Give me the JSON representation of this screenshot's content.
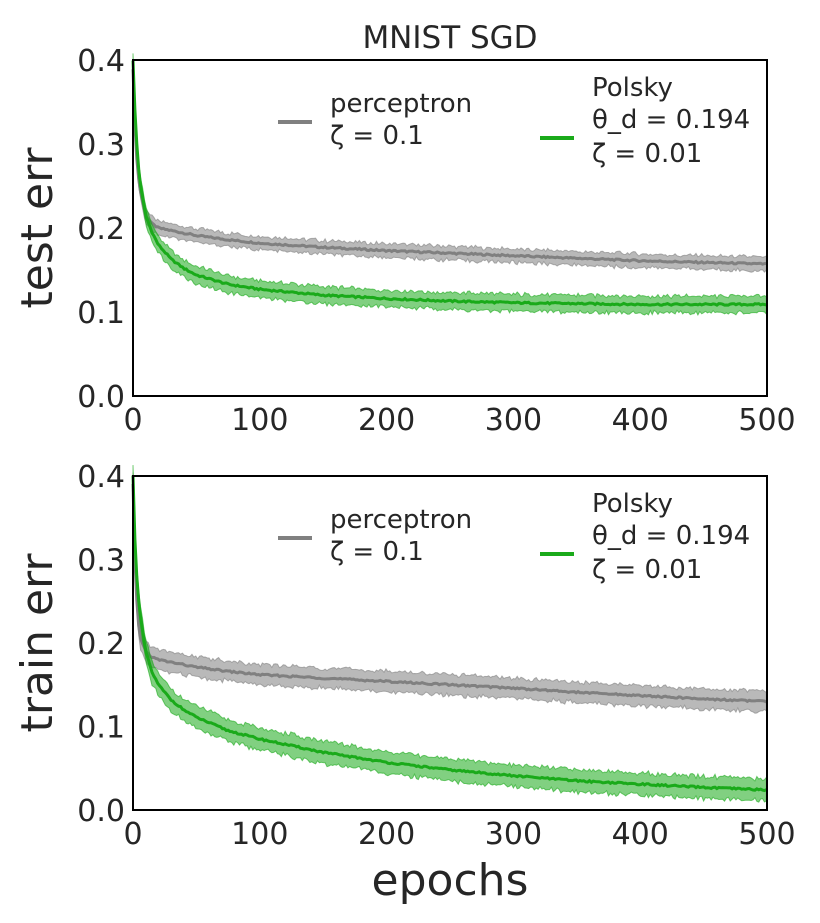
{
  "figure": {
    "title": "MNIST SGD",
    "xlabel": "epochs"
  },
  "chart_data": [
    {
      "type": "line",
      "panel": "top",
      "title": "MNIST SGD",
      "xlabel": "",
      "ylabel": "test err",
      "xlim": [
        0,
        500
      ],
      "ylim": [
        0.0,
        0.4
      ],
      "xticks": [
        "0",
        "100",
        "200",
        "300",
        "400",
        "500"
      ],
      "yticks": [
        "0.0",
        "0.1",
        "0.2",
        "0.3",
        "0.4"
      ],
      "legend": [
        {
          "lines": [
            "perceptron",
            "ζ = 0.1"
          ],
          "color": "#808080",
          "position": "top-center"
        },
        {
          "lines": [
            "Polsky",
            "θ_d = 0.194",
            "ζ = 0.01"
          ],
          "color": "#1aaa1a",
          "position": "top-right"
        }
      ],
      "series": [
        {
          "name": "perceptron ζ=0.1",
          "color": "#808080",
          "x": [
            0,
            2,
            5,
            10,
            15,
            20,
            30,
            40,
            50,
            75,
            100,
            150,
            200,
            250,
            300,
            350,
            400,
            450,
            500
          ],
          "values": [
            0.39,
            0.3,
            0.25,
            0.215,
            0.205,
            0.2,
            0.197,
            0.194,
            0.191,
            0.186,
            0.182,
            0.177,
            0.173,
            0.17,
            0.167,
            0.164,
            0.161,
            0.159,
            0.157
          ],
          "band": 0.008
        },
        {
          "name": "Polsky θ_d=0.194 ζ=0.01",
          "color": "#1aaa1a",
          "x": [
            0,
            2,
            5,
            10,
            15,
            20,
            30,
            40,
            50,
            75,
            100,
            150,
            200,
            250,
            300,
            350,
            400,
            450,
            500
          ],
          "values": [
            0.4,
            0.32,
            0.26,
            0.215,
            0.195,
            0.18,
            0.163,
            0.152,
            0.144,
            0.133,
            0.127,
            0.12,
            0.116,
            0.113,
            0.111,
            0.11,
            0.109,
            0.109,
            0.109
          ],
          "band": 0.01
        }
      ]
    },
    {
      "type": "line",
      "panel": "bottom",
      "title": "",
      "xlabel": "epochs",
      "ylabel": "train err",
      "xlim": [
        0,
        500
      ],
      "ylim": [
        0.0,
        0.4
      ],
      "xticks": [
        "0",
        "100",
        "200",
        "300",
        "400",
        "500"
      ],
      "yticks": [
        "0.0",
        "0.1",
        "0.2",
        "0.3",
        "0.4"
      ],
      "legend": [
        {
          "lines": [
            "perceptron",
            "ζ = 0.1"
          ],
          "color": "#808080",
          "position": "top-center"
        },
        {
          "lines": [
            "Polsky",
            "θ_d = 0.194",
            "ζ = 0.01"
          ],
          "color": "#1aaa1a",
          "position": "top-right"
        }
      ],
      "series": [
        {
          "name": "perceptron ζ=0.1",
          "color": "#808080",
          "x": [
            0,
            2,
            5,
            10,
            15,
            20,
            30,
            40,
            50,
            75,
            100,
            150,
            200,
            250,
            300,
            350,
            400,
            450,
            500
          ],
          "values": [
            0.39,
            0.27,
            0.21,
            0.19,
            0.183,
            0.18,
            0.177,
            0.174,
            0.171,
            0.166,
            0.162,
            0.158,
            0.154,
            0.15,
            0.146,
            0.141,
            0.137,
            0.133,
            0.13
          ],
          "band": 0.012
        },
        {
          "name": "Polsky θ_d=0.194 ζ=0.01",
          "color": "#1aaa1a",
          "x": [
            0,
            2,
            5,
            10,
            15,
            20,
            30,
            40,
            50,
            75,
            100,
            150,
            200,
            250,
            300,
            350,
            400,
            450,
            500
          ],
          "values": [
            0.4,
            0.3,
            0.24,
            0.19,
            0.165,
            0.15,
            0.132,
            0.12,
            0.111,
            0.095,
            0.085,
            0.069,
            0.057,
            0.048,
            0.041,
            0.035,
            0.031,
            0.027,
            0.024
          ],
          "band": 0.013
        }
      ]
    }
  ]
}
